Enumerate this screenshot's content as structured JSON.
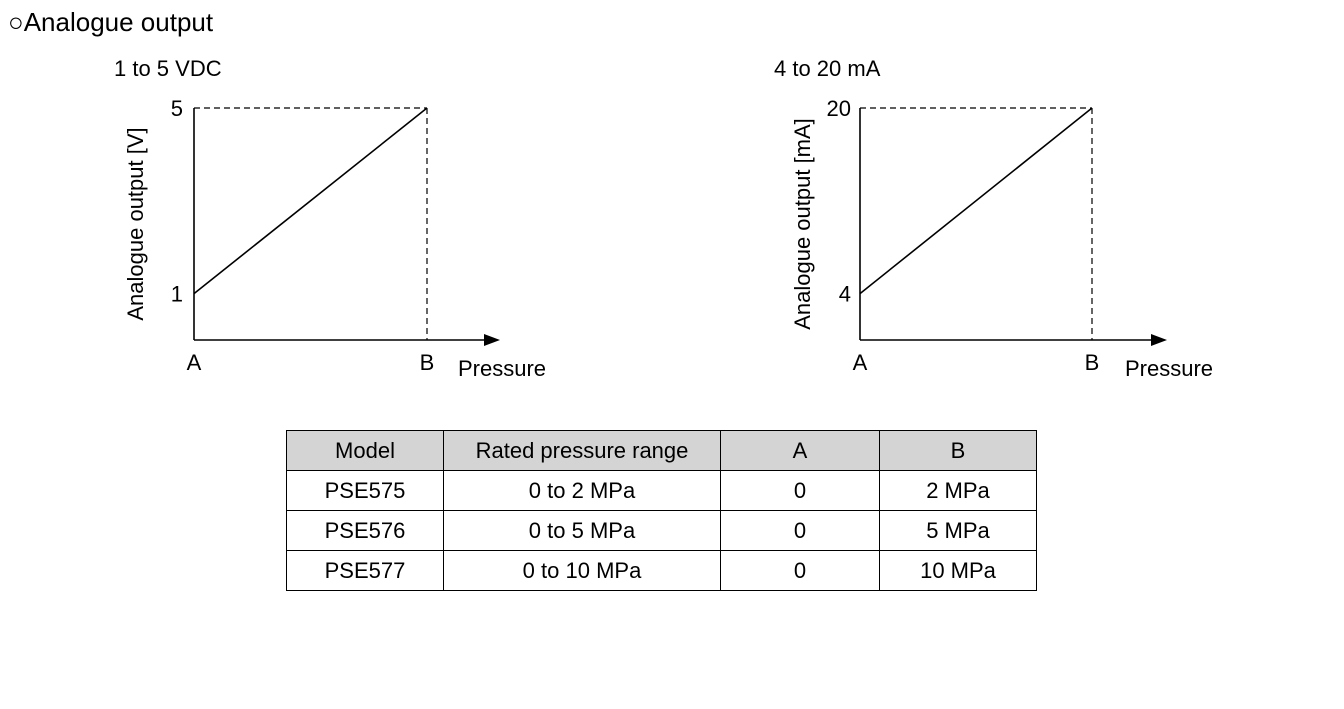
{
  "page": {
    "title": "○Analogue output"
  },
  "chart_data": [
    {
      "type": "line",
      "title": "1 to 5 VDC",
      "ylabel": "Analogue output [V]",
      "xlabel": "Pressure",
      "x_ticks": [
        "A",
        "B"
      ],
      "y_ticks": [
        1,
        5
      ],
      "ylim": [
        0,
        5
      ],
      "series": [
        {
          "name": "Analogue output",
          "points": [
            [
              "A",
              1
            ],
            [
              "B",
              5
            ]
          ]
        }
      ],
      "grid": false
    },
    {
      "type": "line",
      "title": "4 to 20 mA",
      "ylabel": "Analogue output [mA]",
      "xlabel": "Pressure",
      "x_ticks": [
        "A",
        "B"
      ],
      "y_ticks": [
        4,
        20
      ],
      "ylim": [
        0,
        20
      ],
      "series": [
        {
          "name": "Analogue output",
          "points": [
            [
              "A",
              4
            ],
            [
              "B",
              20
            ]
          ]
        }
      ],
      "grid": false
    }
  ],
  "table": {
    "headers": [
      "Model",
      "Rated pressure range",
      "A",
      "B"
    ],
    "rows": [
      [
        "PSE575",
        "0 to 2 MPa",
        "0",
        "2 MPa"
      ],
      [
        "PSE576",
        "0 to 5 MPa",
        "0",
        "5 MPa"
      ],
      [
        "PSE577",
        "0 to 10 MPa",
        "0",
        "10 MPa"
      ]
    ]
  }
}
